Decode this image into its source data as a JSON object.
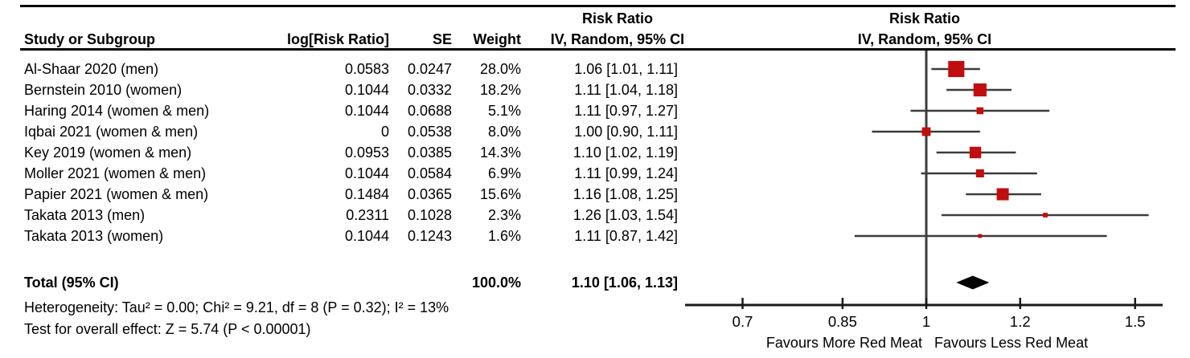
{
  "header": {
    "study": "Study or Subgroup",
    "log_rr": "log[Risk Ratio]",
    "se": "SE",
    "weight": "Weight",
    "rr_line1": "Risk Ratio",
    "rr_line2": "IV, Random, 95% CI"
  },
  "chart_data": {
    "type": "forest",
    "effect_measure": "Risk Ratio",
    "model": "IV, Random, 95% CI",
    "x_scale": "log",
    "xlim": [
      0.63,
      1.58
    ],
    "x_ticks": [
      "0.7",
      "0.85",
      "1",
      "1.2",
      "1.5"
    ],
    "x_tick_values": [
      0.7,
      0.85,
      1,
      1.2,
      1.5
    ],
    "studies": [
      {
        "name": "Al-Shaar 2020 (men)",
        "log_rr": "0.0583",
        "se": "0.0247",
        "weight": "28.0%",
        "weight_pct": 28.0,
        "rr": 1.06,
        "ci_low": 1.01,
        "ci_high": 1.11,
        "ci_text": "1.06 [1.01, 1.11]"
      },
      {
        "name": "Bernstein 2010 (women)",
        "log_rr": "0.1044",
        "se": "0.0332",
        "weight": "18.2%",
        "weight_pct": 18.2,
        "rr": 1.11,
        "ci_low": 1.04,
        "ci_high": 1.18,
        "ci_text": "1.11 [1.04, 1.18]"
      },
      {
        "name": "Haring 2014 (women & men)",
        "log_rr": "0.1044",
        "se": "0.0688",
        "weight": "5.1%",
        "weight_pct": 5.1,
        "rr": 1.11,
        "ci_low": 0.97,
        "ci_high": 1.27,
        "ci_text": "1.11 [0.97, 1.27]"
      },
      {
        "name": "Iqbai 2021 (women & men)",
        "log_rr": "0",
        "se": "0.0538",
        "weight": "8.0%",
        "weight_pct": 8.0,
        "rr": 1.0,
        "ci_low": 0.9,
        "ci_high": 1.11,
        "ci_text": "1.00 [0.90, 1.11]"
      },
      {
        "name": "Key 2019 (women & men)",
        "log_rr": "0.0953",
        "se": "0.0385",
        "weight": "14.3%",
        "weight_pct": 14.3,
        "rr": 1.1,
        "ci_low": 1.02,
        "ci_high": 1.19,
        "ci_text": "1.10 [1.02, 1.19]"
      },
      {
        "name": "Moller 2021 (women & men)",
        "log_rr": "0.1044",
        "se": "0.0584",
        "weight": "6.9%",
        "weight_pct": 6.9,
        "rr": 1.11,
        "ci_low": 0.99,
        "ci_high": 1.24,
        "ci_text": "1.11 [0.99, 1.24]"
      },
      {
        "name": "Papier 2021 (women & men)",
        "log_rr": "0.1484",
        "se": "0.0365",
        "weight": "15.6%",
        "weight_pct": 15.6,
        "rr": 1.16,
        "ci_low": 1.08,
        "ci_high": 1.25,
        "ci_text": "1.16 [1.08, 1.25]"
      },
      {
        "name": "Takata 2013 (men)",
        "log_rr": "0.2311",
        "se": "0.1028",
        "weight": "2.3%",
        "weight_pct": 2.3,
        "rr": 1.26,
        "ci_low": 1.03,
        "ci_high": 1.54,
        "ci_text": "1.26 [1.03, 1.54]"
      },
      {
        "name": "Takata 2013 (women)",
        "log_rr": "0.1044",
        "se": "0.1243",
        "weight": "1.6%",
        "weight_pct": 1.6,
        "rr": 1.11,
        "ci_low": 0.87,
        "ci_high": 1.42,
        "ci_text": "1.11 [0.87, 1.42]"
      }
    ],
    "total": {
      "label": "Total (95% CI)",
      "weight": "100.0%",
      "weight_pct": 100.0,
      "rr": 1.1,
      "ci_low": 1.06,
      "ci_high": 1.13,
      "ci_text": "1.10 [1.06, 1.13]"
    },
    "footnotes": {
      "heterogeneity": "Heterogeneity: Tau² = 0.00; Chi² = 9.21, df = 8 (P = 0.32); I² = 13%",
      "overall_effect": "Test for overall effect: Z = 5.74 (P < 0.00001)"
    },
    "favours_left": "Favours More Red Meat",
    "favours_right": "Favours Less Red Meat"
  },
  "colors": {
    "square": "#c00d0d",
    "ci_line": "#3c3c3c",
    "axis": "#1a1a1a",
    "diamond": "#000000",
    "rule": "#000000"
  }
}
